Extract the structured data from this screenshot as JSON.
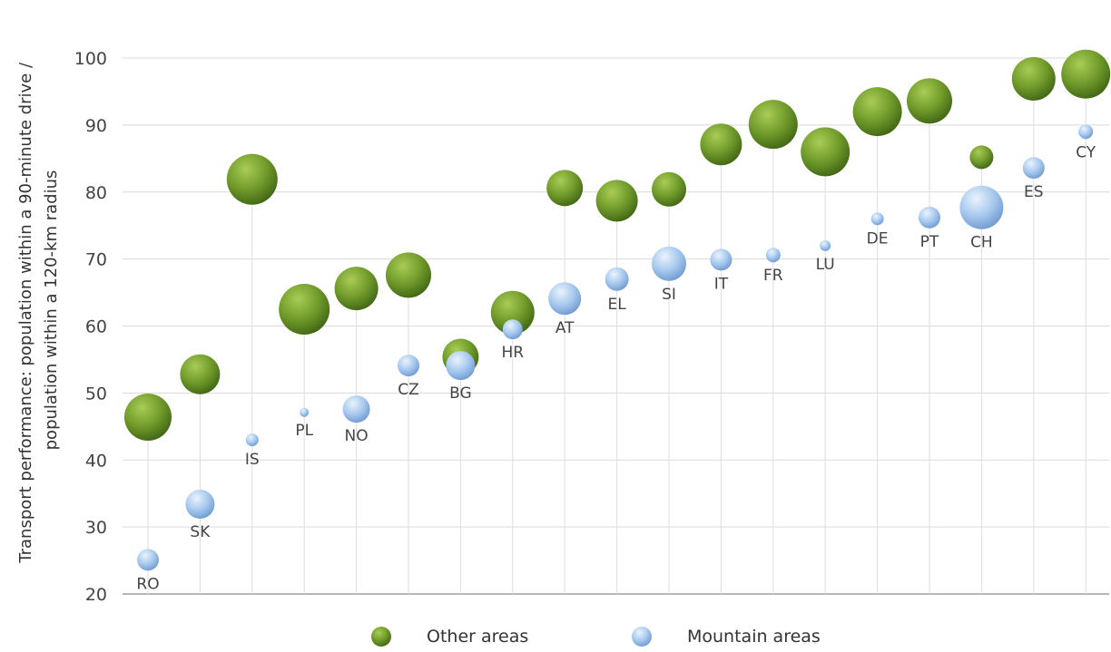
{
  "chart_data": {
    "type": "scatter",
    "subtype": "bubble",
    "ylabel": "Transport performance: population within a 90-minute drive / population within a 120-km radius",
    "ylabel_lines": [
      "Transport performance: population within a 90-minute drive /",
      "population within a 120-km radius"
    ],
    "ylim": [
      20,
      100
    ],
    "yticks": [
      20,
      30,
      40,
      50,
      60,
      70,
      80,
      90,
      100
    ],
    "grid": "horizontal",
    "legend_position": "bottom",
    "categories": [
      "RO",
      "SK",
      "IS",
      "PL",
      "NO",
      "CZ",
      "BG",
      "HR",
      "AT",
      "EL",
      "SI",
      "IT",
      "FR",
      "LU",
      "DE",
      "PT",
      "CH",
      "ES",
      "CY"
    ],
    "series": [
      {
        "name": "Other areas",
        "color": "#6f9a2a",
        "values": [
          46.4,
          52.8,
          81.9,
          62.5,
          65.6,
          67.6,
          55.4,
          62.0,
          80.6,
          78.7,
          80.4,
          87.1,
          90.1,
          86.0,
          92.0,
          93.6,
          85.2,
          96.9,
          97.6
        ],
        "sizes": [
          26,
          22,
          28,
          28,
          24,
          25,
          20,
          24,
          20,
          23,
          19,
          23,
          27,
          27,
          27,
          25,
          13,
          24,
          27
        ]
      },
      {
        "name": "Mountain areas",
        "color": "#9cc3ee",
        "values": [
          25.1,
          33.4,
          43.0,
          47.1,
          47.6,
          54.1,
          54.1,
          59.5,
          64.1,
          67.0,
          69.3,
          69.9,
          70.6,
          72.0,
          76.0,
          76.2,
          77.7,
          83.6,
          89.0
        ],
        "sizes": [
          12,
          16,
          7,
          5,
          15,
          12,
          16,
          11,
          18,
          13,
          19,
          12,
          8,
          6,
          7,
          12,
          24,
          12,
          8
        ]
      }
    ]
  }
}
